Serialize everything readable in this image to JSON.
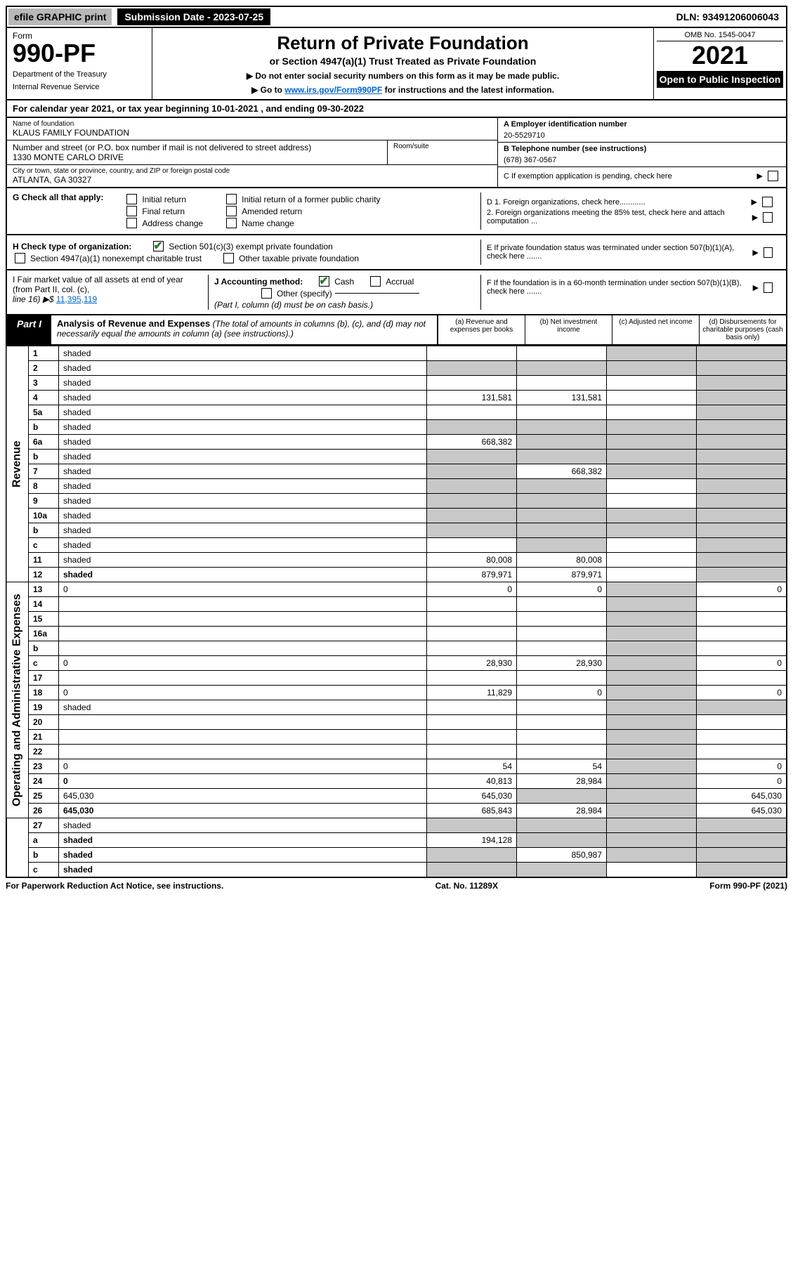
{
  "top": {
    "efile": "efile GRAPHIC print",
    "submission": "Submission Date - 2023-07-25",
    "dln": "DLN: 93491206006043"
  },
  "header": {
    "form_label": "Form",
    "form_num": "990-PF",
    "dept1": "Department of the Treasury",
    "dept2": "Internal Revenue Service",
    "title": "Return of Private Foundation",
    "subtitle": "or Section 4947(a)(1) Trust Treated as Private Foundation",
    "instr1": "▶ Do not enter social security numbers on this form as it may be made public.",
    "instr2_pre": "▶ Go to ",
    "instr2_link": "www.irs.gov/Form990PF",
    "instr2_post": " for instructions and the latest information.",
    "omb": "OMB No. 1545-0047",
    "year": "2021",
    "open": "Open to Public Inspection"
  },
  "cal_year": "For calendar year 2021, or tax year beginning 10-01-2021               , and ending 09-30-2022",
  "info": {
    "name_label": "Name of foundation",
    "name": "KLAUS FAMILY FOUNDATION",
    "ein_label": "A Employer identification number",
    "ein": "20-5529710",
    "addr_label": "Number and street (or P.O. box number if mail is not delivered to street address)",
    "addr": "1330 MONTE CARLO DRIVE",
    "room_label": "Room/suite",
    "tel_label": "B Telephone number (see instructions)",
    "tel": "(678) 367-0567",
    "city_label": "City or town, state or province, country, and ZIP or foreign postal code",
    "city": "ATLANTA, GA  30327",
    "c_label": "C If exemption application is pending, check here"
  },
  "g": {
    "label": "G Check all that apply:",
    "initial": "Initial return",
    "final": "Final return",
    "addr_change": "Address change",
    "initial_former": "Initial return of a former public charity",
    "amended": "Amended return",
    "name_change": "Name change",
    "d1": "D 1. Foreign organizations, check here............",
    "d2": "2. Foreign organizations meeting the 85% test, check here and attach computation ..."
  },
  "h": {
    "label": "H Check type of organization:",
    "s501": "Section 501(c)(3) exempt private foundation",
    "s4947": "Section 4947(a)(1) nonexempt charitable trust",
    "other_tax": "Other taxable private foundation",
    "e_label": "E If private foundation status was terminated under section 507(b)(1)(A), check here ......."
  },
  "i": {
    "label1": "I Fair market value of all assets at end of year (from Part II, col. (c),",
    "label2": "line 16) ▶$ ",
    "fmv": "11,395,119",
    "j_label": "J Accounting method:",
    "cash": "Cash",
    "accrual": "Accrual",
    "other": "Other (specify)",
    "note": "(Part I, column (d) must be on cash basis.)",
    "f_label": "F  If the foundation is in a 60-month termination under section 507(b)(1)(B), check here ......."
  },
  "part1": {
    "label": "Part I",
    "title": "Analysis of Revenue and Expenses",
    "title_note": " (The total of amounts in columns (b), (c), and (d) may not necessarily equal the amounts in column (a) (see instructions).)",
    "col_a": "(a)   Revenue and expenses per books",
    "col_b": "(b)   Net investment income",
    "col_c": "(c)   Adjusted net income",
    "col_d": "(d)   Disbursements for charitable purposes (cash basis only)"
  },
  "sides": {
    "revenue": "Revenue",
    "opex": "Operating and Administrative Expenses"
  },
  "rows": [
    {
      "n": "1",
      "d": "shaded",
      "a": "",
      "b": "",
      "c": "shaded"
    },
    {
      "n": "2",
      "d": "shaded",
      "a": "shaded",
      "b": "shaded",
      "c": "shaded"
    },
    {
      "n": "3",
      "d": "shaded",
      "a": "",
      "b": "",
      "c": ""
    },
    {
      "n": "4",
      "d": "shaded",
      "a": "131,581",
      "b": "131,581",
      "c": ""
    },
    {
      "n": "5a",
      "d": "shaded",
      "a": "",
      "b": "",
      "c": ""
    },
    {
      "n": "b",
      "d": "shaded",
      "a": "shaded",
      "b": "shaded",
      "c": "shaded"
    },
    {
      "n": "6a",
      "d": "shaded",
      "a": "668,382",
      "b": "shaded",
      "c": "shaded"
    },
    {
      "n": "b",
      "d": "shaded",
      "a": "shaded",
      "b": "shaded",
      "c": "shaded"
    },
    {
      "n": "7",
      "d": "shaded",
      "a": "shaded",
      "b": "668,382",
      "c": "shaded"
    },
    {
      "n": "8",
      "d": "shaded",
      "a": "shaded",
      "b": "shaded",
      "c": ""
    },
    {
      "n": "9",
      "d": "shaded",
      "a": "shaded",
      "b": "shaded",
      "c": ""
    },
    {
      "n": "10a",
      "d": "shaded",
      "a": "shaded",
      "b": "shaded",
      "c": "shaded"
    },
    {
      "n": "b",
      "d": "shaded",
      "a": "shaded",
      "b": "shaded",
      "c": "shaded"
    },
    {
      "n": "c",
      "d": "shaded",
      "a": "",
      "b": "shaded",
      "c": ""
    },
    {
      "n": "11",
      "d": "shaded",
      "a": "80,008",
      "b": "80,008",
      "c": ""
    },
    {
      "n": "12",
      "d": "shaded",
      "a": "879,971",
      "b": "879,971",
      "c": "",
      "bold": true
    }
  ],
  "rows2": [
    {
      "n": "13",
      "d": "0",
      "a": "0",
      "b": "0",
      "c": "shaded"
    },
    {
      "n": "14",
      "d": "",
      "a": "",
      "b": "",
      "c": "shaded"
    },
    {
      "n": "15",
      "d": "",
      "a": "",
      "b": "",
      "c": "shaded"
    },
    {
      "n": "16a",
      "d": "",
      "a": "",
      "b": "",
      "c": "shaded"
    },
    {
      "n": "b",
      "d": "",
      "a": "",
      "b": "",
      "c": "shaded"
    },
    {
      "n": "c",
      "d": "0",
      "a": "28,930",
      "b": "28,930",
      "c": "shaded"
    },
    {
      "n": "17",
      "d": "",
      "a": "",
      "b": "",
      "c": "shaded"
    },
    {
      "n": "18",
      "d": "0",
      "a": "11,829",
      "b": "0",
      "c": "shaded"
    },
    {
      "n": "19",
      "d": "shaded",
      "a": "",
      "b": "",
      "c": "shaded"
    },
    {
      "n": "20",
      "d": "",
      "a": "",
      "b": "",
      "c": "shaded"
    },
    {
      "n": "21",
      "d": "",
      "a": "",
      "b": "",
      "c": "shaded"
    },
    {
      "n": "22",
      "d": "",
      "a": "",
      "b": "",
      "c": "shaded"
    },
    {
      "n": "23",
      "d": "0",
      "a": "54",
      "b": "54",
      "c": "shaded"
    },
    {
      "n": "24",
      "d": "0",
      "a": "40,813",
      "b": "28,984",
      "c": "shaded",
      "bold": true
    },
    {
      "n": "25",
      "d": "645,030",
      "a": "645,030",
      "b": "shaded",
      "c": "shaded"
    },
    {
      "n": "26",
      "d": "645,030",
      "a": "685,843",
      "b": "28,984",
      "c": "shaded",
      "bold": true
    }
  ],
  "rows3": [
    {
      "n": "27",
      "d": "shaded",
      "a": "shaded",
      "b": "shaded",
      "c": "shaded"
    },
    {
      "n": "a",
      "d": "shaded",
      "a": "194,128",
      "b": "shaded",
      "c": "shaded",
      "bold": true
    },
    {
      "n": "b",
      "d": "shaded",
      "a": "shaded",
      "b": "850,987",
      "c": "shaded",
      "bold": true
    },
    {
      "n": "c",
      "d": "shaded",
      "a": "shaded",
      "b": "shaded",
      "c": "",
      "bold": true
    }
  ],
  "footer": {
    "left": "For Paperwork Reduction Act Notice, see instructions.",
    "center": "Cat. No. 11289X",
    "right": "Form 990-PF (2021)"
  }
}
